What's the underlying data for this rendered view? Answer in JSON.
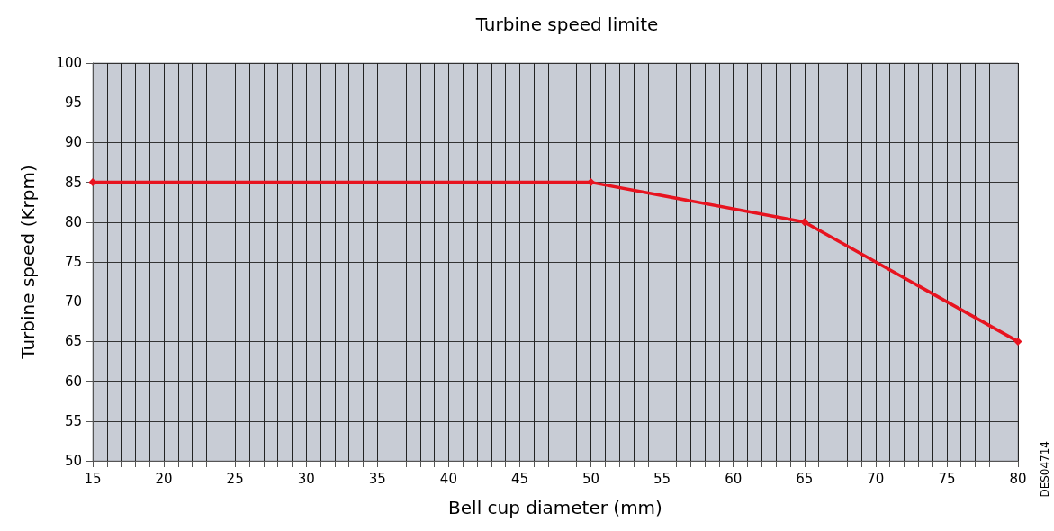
{
  "chart_data": {
    "type": "line",
    "title": "Turbine speed limite",
    "xlabel": "Bell cup diameter (mm)",
    "ylabel": "Turbine speed (Krpm)",
    "annotations": [
      "DES04714"
    ],
    "x": [
      15,
      50,
      65,
      80
    ],
    "series": [
      {
        "color": "#e8131f",
        "values": [
          85,
          85,
          80,
          65
        ]
      }
    ],
    "xlim": [
      15,
      80
    ],
    "xticks": [
      15,
      {
        "value": 16,
        "label": null
      },
      {
        "value": 17,
        "label": null
      },
      {
        "value": 18,
        "label": null
      },
      {
        "value": 19,
        "label": null
      },
      20,
      {
        "value": 21,
        "label": null
      },
      {
        "value": 22,
        "label": null
      },
      {
        "value": 23,
        "label": null
      },
      {
        "value": 24,
        "label": null
      },
      25,
      {
        "value": 26,
        "label": null
      },
      {
        "value": 27,
        "label": null
      },
      {
        "value": 28,
        "label": null
      },
      {
        "value": 29,
        "label": null
      },
      30,
      {
        "value": 31,
        "label": null
      },
      {
        "value": 32,
        "label": null
      },
      {
        "value": 33,
        "label": null
      },
      {
        "value": 34,
        "label": null
      },
      35,
      {
        "value": 36,
        "label": null
      },
      {
        "value": 37,
        "label": null
      },
      {
        "value": 38,
        "label": null
      },
      {
        "value": 39,
        "label": null
      },
      40,
      {
        "value": 41,
        "label": null
      },
      {
        "value": 42,
        "label": null
      },
      {
        "value": 43,
        "label": null
      },
      {
        "value": 44,
        "label": null
      },
      45,
      {
        "value": 46,
        "label": null
      },
      {
        "value": 47,
        "label": null
      },
      {
        "value": 48,
        "label": null
      },
      {
        "value": 49,
        "label": null
      },
      50,
      {
        "value": 51,
        "label": null
      },
      {
        "value": 52,
        "label": null
      },
      {
        "value": 53,
        "label": null
      },
      {
        "value": 54,
        "label": null
      },
      55,
      {
        "value": 56,
        "label": null
      },
      {
        "value": 57,
        "label": null
      },
      {
        "value": 58,
        "label": null
      },
      {
        "value": 59,
        "label": null
      },
      60,
      {
        "value": 61,
        "label": null
      },
      {
        "value": 62,
        "label": null
      },
      {
        "value": 63,
        "label": null
      },
      {
        "value": 64,
        "label": null
      },
      65,
      {
        "value": 66,
        "label": null
      },
      {
        "value": 67,
        "label": null
      },
      {
        "value": 68,
        "label": null
      },
      {
        "value": 69,
        "label": null
      },
      70,
      {
        "value": 71,
        "label": null
      },
      {
        "value": 72,
        "label": null
      },
      {
        "value": 73,
        "label": null
      },
      {
        "value": 74,
        "label": null
      },
      75,
      {
        "value": 76,
        "label": null
      },
      {
        "value": 77,
        "label": null
      },
      {
        "value": 78,
        "label": null
      },
      {
        "value": 79,
        "label": null
      },
      80
    ],
    "ylim": [
      50,
      100
    ],
    "yticks": [
      50,
      55,
      60,
      65,
      70,
      75,
      80,
      85,
      90,
      95,
      100
    ],
    "grid": true,
    "marker": "diamond",
    "line_style": "solid"
  }
}
